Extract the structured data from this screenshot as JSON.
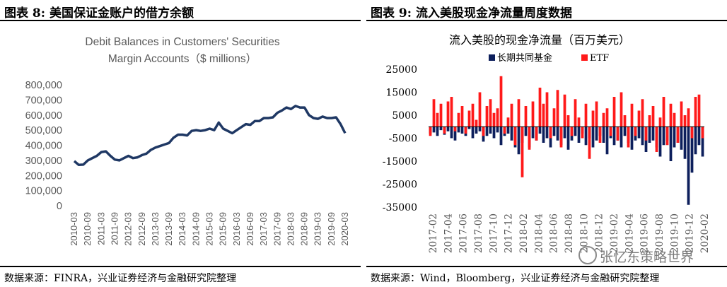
{
  "left_panel": {
    "header": "图表 8:  美国保证金账户的借方余额",
    "source": "数据来源：FINRA，兴业证券经济与金融研究院整理"
  },
  "right_panel": {
    "header": "图表 9:  流入美股现金净流量周度数据",
    "source": "数据来源：Wind，Bloomberg，兴业证券经济与金融研究院整理",
    "watermark": "张忆东策略世界"
  },
  "colors": {
    "line": "#1f3864",
    "mutual_fund": "#0d1f5c",
    "etf": "#ff1a1a",
    "grid": "#d9d9d9",
    "axis_text": "#595959"
  },
  "chart_data": [
    {
      "type": "line",
      "title_lines": [
        "Debit Balances in Customers' Securities",
        "Margin Accounts（$ millions）"
      ],
      "ylim": [
        0,
        800000
      ],
      "yticks": [
        "0",
        "100,000",
        "200,000",
        "300,000",
        "400,000",
        "500,000",
        "600,000",
        "700,000",
        "800,000"
      ],
      "xticks": [
        "2010-03",
        "2010-09",
        "2011-03",
        "2011-09",
        "2012-03",
        "2012-09",
        "2013-03",
        "2013-09",
        "2014-03",
        "2014-09",
        "2015-03",
        "2015-09",
        "2016-03",
        "2016-09",
        "2017-03",
        "2017-09",
        "2018-03",
        "2018-09",
        "2019-03",
        "2019-09",
        "2020-03"
      ],
      "x": [
        "2010-03",
        "2010-05",
        "2010-07",
        "2010-09",
        "2010-11",
        "2011-01",
        "2011-03",
        "2011-05",
        "2011-07",
        "2011-09",
        "2011-11",
        "2012-01",
        "2012-03",
        "2012-05",
        "2012-07",
        "2012-09",
        "2012-11",
        "2013-01",
        "2013-03",
        "2013-05",
        "2013-07",
        "2013-09",
        "2013-11",
        "2014-01",
        "2014-03",
        "2014-05",
        "2014-07",
        "2014-09",
        "2014-11",
        "2015-01",
        "2015-03",
        "2015-05",
        "2015-07",
        "2015-09",
        "2015-11",
        "2016-01",
        "2016-03",
        "2016-05",
        "2016-07",
        "2016-09",
        "2016-11",
        "2017-01",
        "2017-03",
        "2017-05",
        "2017-07",
        "2017-09",
        "2017-11",
        "2018-01",
        "2018-03",
        "2018-05",
        "2018-07",
        "2018-09",
        "2018-11",
        "2019-01",
        "2019-03",
        "2019-05",
        "2019-07",
        "2019-09",
        "2019-11",
        "2020-01",
        "2020-03"
      ],
      "values": [
        295000,
        270000,
        272000,
        300000,
        315000,
        330000,
        355000,
        360000,
        330000,
        305000,
        300000,
        315000,
        330000,
        315000,
        320000,
        335000,
        345000,
        370000,
        385000,
        395000,
        405000,
        415000,
        450000,
        470000,
        470000,
        465000,
        495000,
        500000,
        495000,
        500000,
        510000,
        500000,
        550000,
        510000,
        495000,
        480000,
        500000,
        520000,
        540000,
        535000,
        560000,
        560000,
        580000,
        580000,
        585000,
        615000,
        630000,
        650000,
        640000,
        660000,
        650000,
        650000,
        600000,
        580000,
        575000,
        590000,
        580000,
        580000,
        585000,
        540000,
        480000
      ]
    },
    {
      "type": "bar",
      "title": "流入美股的现金净流量（百万美元）",
      "legend": [
        "长期共同基金",
        "ETF"
      ],
      "legend_placement": "top",
      "ylim": [
        -35000,
        25000
      ],
      "yticks": [
        "25000",
        "15000",
        "5000",
        "-5000",
        "-15000",
        "-25000",
        "-35000"
      ],
      "xticks": [
        "2017-02",
        "2017-04",
        "2017-06",
        "2017-08",
        "2017-10",
        "2017-12",
        "2018-02",
        "2018-04",
        "2018-06",
        "2018-08",
        "2018-10",
        "2018-12",
        "2019-02",
        "2019-04",
        "2019-06",
        "2019-08",
        "2019-10",
        "2019-12",
        "2020-02"
      ],
      "series": [
        {
          "name": "长期共同基金",
          "values": [
            -3000,
            -2500,
            -4000,
            -1500,
            -3500,
            -2000,
            -5000,
            -6000,
            -2500,
            -3000,
            -4000,
            -1000,
            -5000,
            -3000,
            -2000,
            -6500,
            -4000,
            -3000,
            -5000,
            -2500,
            -8000,
            -4000,
            -3000,
            -6000,
            -9000,
            -12000,
            -7000,
            -4000,
            -9000,
            -5000,
            -6000,
            -3000,
            -7000,
            -5000,
            -9000,
            -4000,
            -6000,
            -8000,
            -5000,
            -10000,
            -6000,
            -4000,
            -7000,
            -3000,
            -8000,
            -5000,
            -9000,
            -6000,
            -4000,
            -7000,
            -12000,
            -5000,
            -8000,
            -6000,
            -9000,
            -4000,
            -7000,
            -10000,
            -6000,
            -5000,
            -8000,
            -11000,
            -7000,
            -6000,
            -9000,
            -13000,
            -8000,
            -6000,
            -15000,
            -9000,
            -7000,
            -10000,
            -14000,
            -34000,
            -20000,
            -12000,
            -8000,
            -13000
          ]
        },
        {
          "name": "ETF",
          "values": [
            -4000,
            12000,
            6000,
            10000,
            -3000,
            11000,
            13000,
            -2000,
            6000,
            9000,
            -3000,
            7000,
            10000,
            3000,
            15000,
            -4000,
            9000,
            12000,
            6000,
            8000,
            22000,
            -3000,
            4000,
            10000,
            -8000,
            12000,
            -22000,
            9000,
            -10000,
            11000,
            -6000,
            17000,
            10000,
            15000,
            -5000,
            8000,
            16000,
            -9000,
            14000,
            5000,
            -4000,
            12000,
            4000,
            -5000,
            10000,
            -14000,
            7000,
            11000,
            -7000,
            6000,
            8000,
            -4000,
            13000,
            -6000,
            15000,
            5000,
            -9000,
            10000,
            -4000,
            7000,
            12000,
            -6000,
            5000,
            9000,
            -11000,
            4000,
            13000,
            -8000,
            10000,
            6000,
            -7000,
            11000,
            5000,
            8000,
            -5000,
            13000,
            14000,
            -5000
          ]
        }
      ]
    }
  ]
}
